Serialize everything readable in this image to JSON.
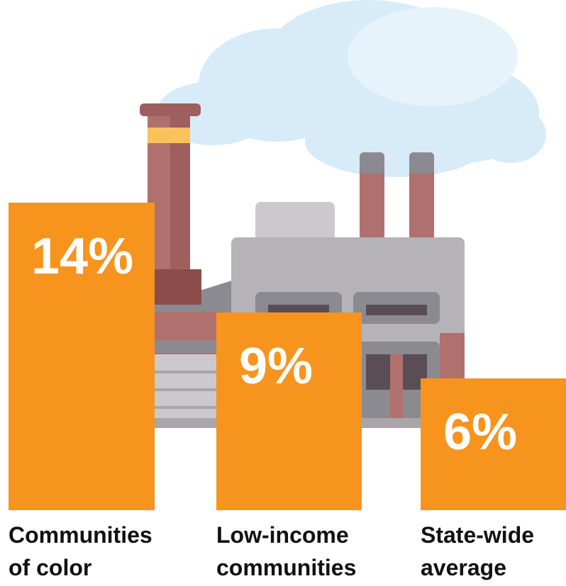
{
  "chart_data": {
    "type": "bar",
    "categories": [
      "Communities of color",
      "Low-income communities",
      "State-wide average"
    ],
    "values": [
      14,
      9,
      6
    ],
    "value_labels": [
      "14%",
      "9%",
      "6%"
    ],
    "color": "#f7941d"
  }
}
